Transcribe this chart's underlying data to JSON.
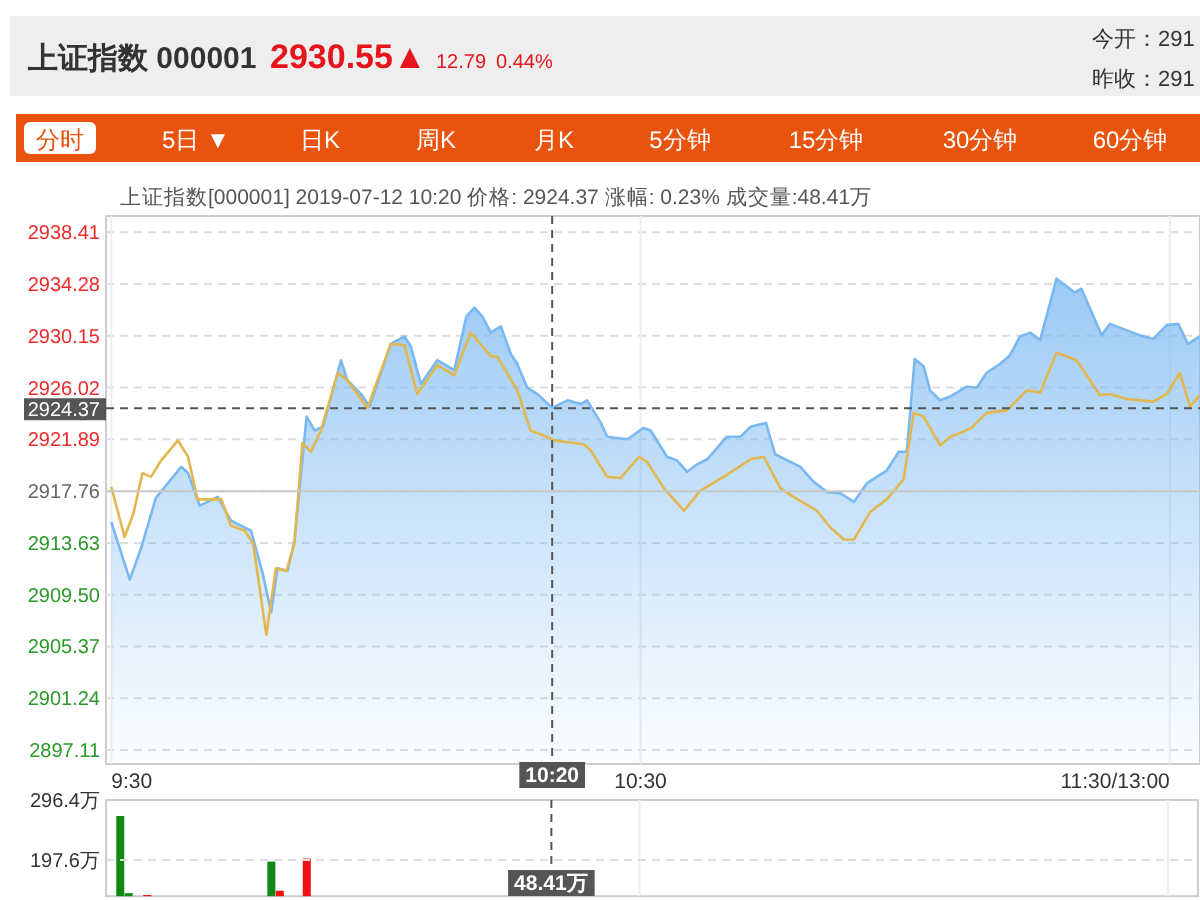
{
  "chart_data": [
    {
      "type": "area",
      "title": "上证指数 000001",
      "subtitle": "上证指数[000001]  2019-07-12 10:20  价格: 2924.37  涨幅: 0.23%  成交量:48.41万",
      "annotations": [
        "2930.55▲",
        "12.79",
        "0.44%",
        "今开：291",
        "昨收：291",
        "分时",
        "5日 ▼",
        "日K",
        "周K",
        "月K",
        "5分钟",
        "15分钟",
        "30分钟",
        "60分钟"
      ],
      "xlim": [
        9.49,
        11.557
      ],
      "xticks": [
        {
          "value": 9.5,
          "label": "9:30"
        },
        {
          "value": 10.5,
          "label": "10:30"
        },
        {
          "value": 11.5,
          "label": "11:30/13:00"
        }
      ],
      "ylim": [
        2896.0,
        2939.7
      ],
      "yticks": [
        2938.41,
        2934.28,
        2930.15,
        2926.02,
        2921.89,
        2917.76,
        2913.63,
        {
          "value": 2909.5,
          "label": "2909.50"
        },
        2905.37,
        2901.24,
        2897.11
      ],
      "grid": true,
      "ref_lines": [
        {
          "axis": "y",
          "value": 2917.76,
          "color": "#c8c8c8",
          "line_style": "solid"
        },
        {
          "axis": "y",
          "value": 2924.37,
          "label": "2924.37",
          "color": "#555555",
          "line_style": "dashed"
        },
        {
          "axis": "x",
          "value": 10.333,
          "label": "10:20",
          "color": "#555555",
          "line_style": "dashed"
        }
      ],
      "series": [
        {
          "type": "area",
          "color": "#7ab8f2",
          "x": [
            9.5,
            9.535,
            9.557,
            9.584,
            9.632,
            9.645,
            9.667,
            9.701,
            9.726,
            9.764,
            9.786,
            9.802,
            9.814,
            9.833,
            9.846,
            9.869,
            9.884,
            9.9,
            9.934,
            9.946,
            9.972,
            9.988,
            10.028,
            10.054,
            10.066,
            10.085,
            10.116,
            10.148,
            10.171,
            10.186,
            10.201,
            10.217,
            10.236,
            10.255,
            10.267,
            10.286,
            10.305,
            10.333,
            10.362,
            10.387,
            10.399,
            10.425,
            10.437,
            10.475,
            10.506,
            10.519,
            10.55,
            10.569,
            10.588,
            10.607,
            10.626,
            10.663,
            10.689,
            10.708,
            10.737,
            10.754,
            10.802,
            10.827,
            10.852,
            10.877,
            10.903,
            10.928,
            10.965,
            10.988,
            11.003,
            11.018,
            11.035,
            11.047,
            11.066,
            11.085,
            11.116,
            11.135,
            11.154,
            11.179,
            11.198,
            11.217,
            11.236,
            11.255,
            11.286,
            11.305,
            11.32,
            11.333,
            11.371,
            11.387,
            11.418,
            11.443,
            11.469,
            11.494,
            11.516,
            11.534,
            11.557
          ],
          "values": [
            2915.3,
            2910.7,
            2913.3,
            2917.2,
            2919.7,
            2919.2,
            2916.6,
            2917.3,
            2915.4,
            2914.6,
            2911.2,
            2908.1,
            2911.6,
            2911.4,
            2913.8,
            2923.7,
            2922.6,
            2922.9,
            2928.2,
            2926.6,
            2925.5,
            2924.5,
            2929.5,
            2930.1,
            2929.3,
            2926.3,
            2928.2,
            2927.4,
            2931.7,
            2932.4,
            2931.7,
            2930.4,
            2930.9,
            2928.7,
            2927.9,
            2926.0,
            2925.5,
            2924.4,
            2925.0,
            2924.7,
            2925.0,
            2923.2,
            2922.1,
            2921.9,
            2922.8,
            2922.6,
            2920.5,
            2920.2,
            2919.3,
            2919.9,
            2920.3,
            2922.1,
            2922.1,
            2922.9,
            2923.2,
            2920.7,
            2919.7,
            2918.5,
            2917.7,
            2917.6,
            2916.9,
            2918.4,
            2919.4,
            2920.9,
            2920.9,
            2928.3,
            2927.7,
            2925.8,
            2925.0,
            2925.3,
            2926.1,
            2926.0,
            2927.2,
            2927.9,
            2928.6,
            2930.1,
            2930.4,
            2929.8,
            2934.7,
            2934.1,
            2933.6,
            2933.9,
            2930.2,
            2931.1,
            2930.6,
            2930.2,
            2929.9,
            2931.0,
            2931.1,
            2929.5,
            2930.1
          ]
        },
        {
          "type": "line",
          "color": "#e3b74f",
          "x": [
            9.5,
            9.525,
            9.542,
            9.559,
            9.575,
            9.594,
            9.626,
            9.645,
            9.663,
            9.708,
            9.726,
            9.752,
            9.768,
            9.793,
            9.811,
            9.831,
            9.846,
            9.861,
            9.877,
            9.896,
            9.928,
            9.946,
            9.984,
            10.028,
            10.054,
            10.078,
            10.116,
            10.148,
            10.179,
            10.217,
            10.229,
            10.267,
            10.292,
            10.311,
            10.337,
            10.393,
            10.406,
            10.425,
            10.437,
            10.462,
            10.497,
            10.512,
            10.544,
            10.582,
            10.613,
            10.657,
            10.708,
            10.733,
            10.764,
            10.789,
            10.833,
            10.858,
            10.884,
            10.903,
            10.934,
            10.965,
            10.997,
            11.016,
            11.035,
            11.066,
            11.085,
            11.11,
            11.125,
            11.154,
            11.192,
            11.23,
            11.255,
            11.286,
            11.324,
            11.368,
            11.387,
            11.418,
            11.469,
            11.494,
            11.519,
            11.538,
            11.557
          ],
          "values": [
            2918.1,
            2914.1,
            2916.0,
            2919.2,
            2918.9,
            2920.2,
            2921.8,
            2920.5,
            2917.1,
            2917.1,
            2915.0,
            2914.6,
            2913.6,
            2906.3,
            2911.6,
            2911.4,
            2913.6,
            2921.6,
            2920.9,
            2922.6,
            2927.2,
            2926.6,
            2924.4,
            2929.5,
            2929.4,
            2925.5,
            2927.8,
            2927.0,
            2930.4,
            2928.5,
            2928.5,
            2925.8,
            2922.6,
            2922.3,
            2921.8,
            2921.5,
            2921.0,
            2919.7,
            2918.9,
            2918.8,
            2920.5,
            2920.1,
            2918.0,
            2916.2,
            2917.8,
            2918.9,
            2920.3,
            2920.5,
            2918.0,
            2917.3,
            2916.2,
            2914.9,
            2913.9,
            2913.9,
            2916.1,
            2917.1,
            2918.7,
            2924.0,
            2923.7,
            2921.4,
            2922.1,
            2922.5,
            2922.8,
            2924.0,
            2924.2,
            2925.8,
            2925.6,
            2928.8,
            2928.2,
            2925.4,
            2925.5,
            2925.1,
            2924.9,
            2925.5,
            2927.2,
            2924.5,
            2925.4
          ]
        }
      ]
    },
    {
      "type": "bar",
      "x": [
        9.517,
        9.533,
        9.568,
        9.803,
        9.819,
        9.87
      ],
      "values": [
        270,
        143,
        140,
        195,
        147,
        200
      ],
      "colors": [
        "#118811",
        "#118811",
        "#ee1111",
        "#118811",
        "#ee1111",
        "#ee1111"
      ],
      "xlim": [
        9.49,
        11.557
      ],
      "ylim": [
        138,
        296.4
      ],
      "yticks": [
        {
          "value": 296.4,
          "label": "296.4万"
        },
        {
          "value": 197.6,
          "label": "197.6万"
        }
      ],
      "tick_labels": "y",
      "grid": "x",
      "xticks": [
        10.5,
        11.5
      ],
      "ref_lines": [
        {
          "axis": "y",
          "value": 197.6,
          "color": "#dddddd",
          "line_style": "dashed"
        },
        {
          "axis": "x",
          "value": 10.333,
          "label": "48.41万",
          "color": "#555555",
          "line_style": "dashed"
        }
      ]
    }
  ]
}
